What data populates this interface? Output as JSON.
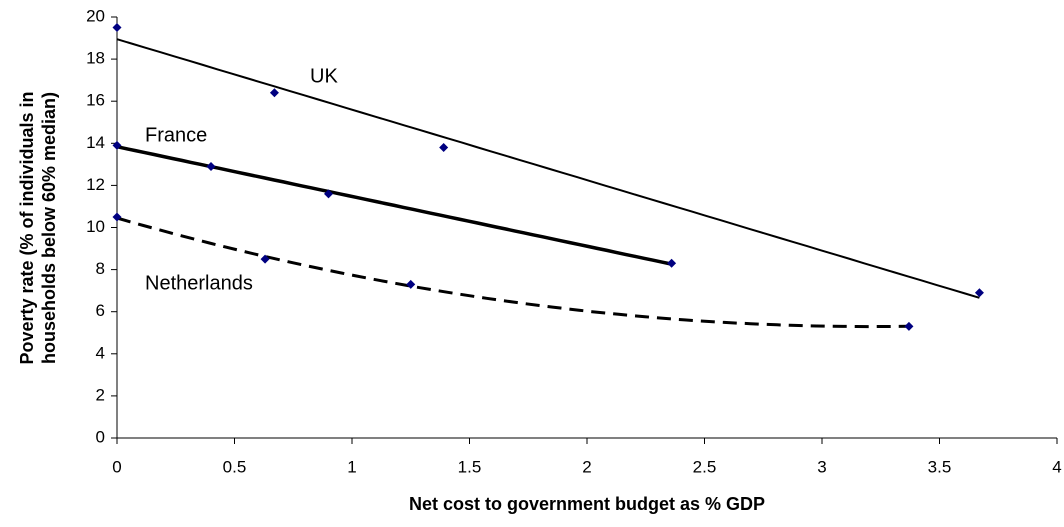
{
  "chart_data": {
    "type": "scatter",
    "x_label": "Net cost to government budget as % GDP",
    "y_label": [
      "Poverty rate (% of individuals in",
      "households below 60% median)"
    ],
    "xlim": [
      0,
      4
    ],
    "xticks": [
      0,
      0.5,
      1,
      1.5,
      2,
      2.5,
      3,
      3.5,
      4
    ],
    "ylim": [
      0,
      20
    ],
    "yticks": [
      0,
      2,
      4,
      6,
      8,
      10,
      12,
      14,
      16,
      18,
      20
    ],
    "grid": false,
    "marker_color": "#000080",
    "series": [
      {
        "name": "UK",
        "color": "#000000",
        "trendline": 1,
        "line_style": "solid",
        "line_width": 2,
        "x": [
          0,
          0.67,
          1.39,
          3.67
        ],
        "values": [
          19.5,
          16.4,
          13.8,
          6.9
        ]
      },
      {
        "name": "France",
        "color": "#000000",
        "trendline": 1,
        "line_style": "solid",
        "line_width": 3.5,
        "x": [
          0,
          0.4,
          0.9,
          2.36
        ],
        "values": [
          13.9,
          12.9,
          11.6,
          8.3
        ]
      },
      {
        "name": "Netherlands",
        "color": "#000000",
        "trendline": 2,
        "line_style": "dashed",
        "line_width": 3,
        "x": [
          0,
          0.63,
          1.25,
          3.37
        ],
        "values": [
          10.5,
          8.5,
          7.3,
          5.3
        ]
      }
    ]
  }
}
